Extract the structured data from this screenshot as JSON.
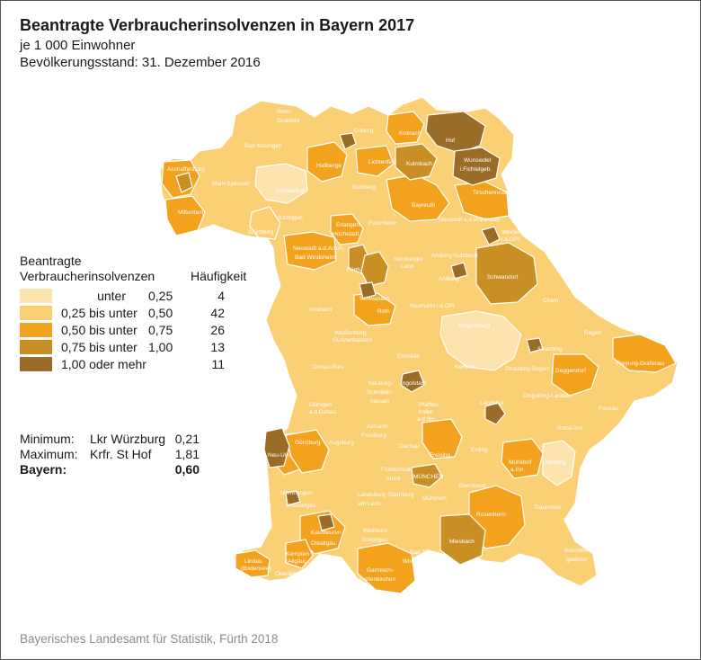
{
  "title": "Beantragte Verbraucherinsolvenzen in Bayern 2017",
  "subtitle1": "je 1 000 Einwohner",
  "subtitle2": "Bevölkerungsstand: 31. Dezember 2016",
  "legend": {
    "title_line1": "Beantragte",
    "title_line2": "Verbraucherinsolvenzen",
    "freq_title": "Häufigkeit",
    "classes": [
      {
        "a": "unter",
        "b": "0,25",
        "count": "4",
        "color": "#fde4ae"
      },
      {
        "a": "0,25  bis unter",
        "b": "0,50",
        "count": "42",
        "color": "#fbcf74"
      },
      {
        "a": "0,50  bis unter",
        "b": "0,75",
        "count": "26",
        "color": "#f3a21d"
      },
      {
        "a": "0,75  bis unter",
        "b": "1,00",
        "count": "13",
        "color": "#c98f25"
      },
      {
        "a": "1,00  oder mehr",
        "b": "",
        "count": "11",
        "color": "#9b6b28"
      }
    ]
  },
  "stats": {
    "min_label": "Minimum:",
    "min_name": "Lkr Würzburg",
    "min_value": "0,21",
    "max_label": "Maximum:",
    "max_name": "Krfr. St Hof",
    "max_value": "1,81",
    "total_label": "Bayern:",
    "total_value": "0,60"
  },
  "source": "Bayerisches Landesamt für Statistik, Fürth 2018",
  "map_labels": [
    "Rhön-",
    "Grabfeld",
    "Coburg",
    "Kronach",
    "Hof",
    "Bad Kissingen",
    "Hallberge",
    "Lichtenfels",
    "Kulmbach",
    "Wunsiedel",
    "i.Fichtelgeb.",
    "Aschaffenburg",
    "Main-Spessart",
    "Schweinfurt",
    "Bamberg",
    "Bayreuth",
    "Tirschenreuth",
    "Miltenberg",
    "Kitzingen",
    "Forchheim",
    "Neustadt a.d.Waldnaab",
    "Weiden",
    "i.d.OPf.",
    "Würzburg",
    "Erlangen-",
    "Höchstadt",
    "Neustadt a.d.Aisch-",
    "Bad Windsheim",
    "Amberg-Sulzbach",
    "Nürnberger",
    "Land",
    "Fürth",
    "Amberg",
    "Schwandorf",
    "Cham",
    "Ansbach",
    "Schwabach",
    "Roth",
    "Neumarkt i.d.OPf.",
    "Regensburg",
    "Regen",
    "Weißenburg-",
    "Gunzenhausen",
    "Straubing",
    "Freyung-Grafenau",
    "Eichstätt",
    "Kelheim",
    "Straubing-Bogen",
    "Deggendorf",
    "Donau-Ries",
    "Neuburg-",
    "Schroben-",
    "hausen",
    "Ingolstadt",
    "Landshut",
    "Dingolfing-Landau",
    "Passau",
    "Pfaffen-",
    "hofen",
    "a.d.Ilm",
    "Dillingen",
    "a.d.Donau",
    "Aichach-",
    "Friedberg",
    "Rottal-Inn",
    "Neu-Ulm",
    "Günzburg",
    "Augsburg",
    "Freising",
    "Dachau",
    "Erding",
    "Mühldorf",
    "a.Inn",
    "Altötting",
    "Fürstenfeld-",
    "bruck",
    "MÜNCHEN",
    "Ebersberg",
    "Memmingen",
    "Unterallgäu",
    "Landsberg",
    "am Lech",
    "Starnberg",
    "München",
    "Traunstein",
    "Kaufbeuren",
    "Rosenheim",
    "Ostallgäu",
    "Weilheim-",
    "Schongau",
    "Miesbach",
    "Bad Tölz-",
    "Wolfratshausen",
    "Berchtes-",
    "gadener",
    "Kempten",
    "(Allgäu)",
    "Lindau",
    "(Bodensee)",
    "Oberallgäu",
    "Garmisch-",
    "Partenkirchen"
  ]
}
